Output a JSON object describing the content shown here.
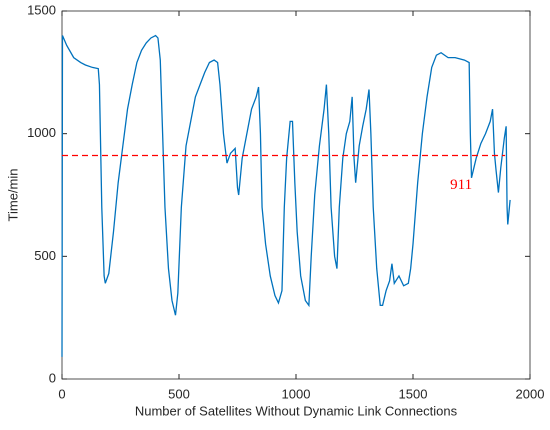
{
  "chart_data": {
    "type": "line",
    "xlabel": "Number of Satellites Without Dynamic Link Connections",
    "ylabel": "Time/min",
    "x": [
      0,
      2,
      20,
      50,
      80,
      100,
      130,
      155,
      160,
      170,
      180,
      185,
      200,
      220,
      240,
      260,
      280,
      300,
      320,
      340,
      360,
      380,
      400,
      410,
      420,
      430,
      440,
      455,
      470,
      485,
      495,
      510,
      530,
      550,
      570,
      590,
      610,
      630,
      650,
      665,
      675,
      690,
      700,
      705,
      720,
      740,
      750,
      755,
      770,
      790,
      810,
      830,
      840,
      848,
      855,
      870,
      890,
      910,
      925,
      940,
      950,
      960,
      975,
      985,
      995,
      1005,
      1020,
      1040,
      1055,
      1065,
      1080,
      1100,
      1120,
      1130,
      1140,
      1150,
      1165,
      1175,
      1185,
      1200,
      1215,
      1230,
      1240,
      1248,
      1255,
      1270,
      1285,
      1300,
      1312,
      1320,
      1330,
      1345,
      1360,
      1370,
      1385,
      1400,
      1410,
      1420,
      1440,
      1460,
      1480,
      1490,
      1500,
      1520,
      1540,
      1560,
      1580,
      1600,
      1620,
      1650,
      1680,
      1720,
      1740,
      1745,
      1750,
      1770,
      1790,
      1810,
      1830,
      1840,
      1848,
      1855,
      1865,
      1875,
      1890,
      1898,
      1902,
      1905,
      1915
    ],
    "series": [
      {
        "color": "#0072bd",
        "values": [
          90,
          1400,
          1360,
          1310,
          1290,
          1280,
          1270,
          1265,
          1200,
          700,
          420,
          390,
          430,
          600,
          800,
          950,
          1100,
          1200,
          1290,
          1340,
          1370,
          1390,
          1400,
          1390,
          1300,
          1000,
          700,
          450,
          320,
          260,
          350,
          700,
          950,
          1050,
          1150,
          1200,
          1250,
          1290,
          1300,
          1290,
          1200,
          1000,
          920,
          880,
          920,
          940,
          780,
          750,
          900,
          1000,
          1100,
          1150,
          1190,
          1000,
          700,
          550,
          420,
          340,
          310,
          360,
          700,
          900,
          1050,
          1050,
          800,
          600,
          420,
          320,
          300,
          500,
          750,
          950,
          1100,
          1200,
          1000,
          700,
          500,
          450,
          700,
          900,
          1000,
          1050,
          1150,
          900,
          800,
          950,
          1030,
          1100,
          1180,
          1000,
          700,
          450,
          300,
          300,
          360,
          400,
          470,
          390,
          420,
          380,
          390,
          450,
          550,
          800,
          1000,
          1150,
          1270,
          1320,
          1330,
          1310,
          1310,
          1300,
          1290,
          1000,
          820,
          900,
          960,
          1000,
          1050,
          1100,
          920,
          850,
          760,
          860,
          980,
          1030,
          700,
          630,
          730
        ]
      }
    ],
    "reference_line": 911,
    "reference_color": "#ff0000",
    "xlim": [
      0,
      2000
    ],
    "xticks": [
      0,
      500,
      1000,
      1500,
      2000
    ],
    "ylim": [
      0,
      1500
    ],
    "yticks": [
      0,
      500,
      1000,
      1500
    ]
  }
}
